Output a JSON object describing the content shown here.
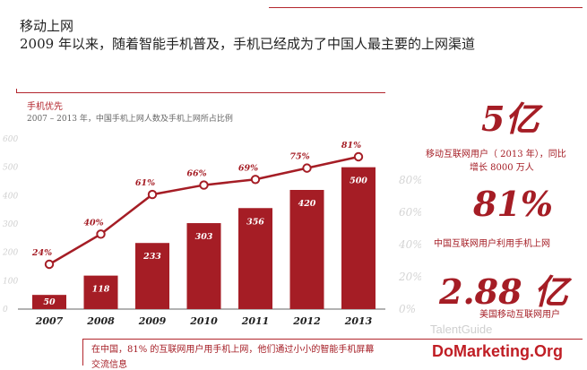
{
  "header": {
    "title": "移动上网",
    "subtitle": "2009 年以来，随着智能手机普及，手机已经成为了中国人最主要的上网渠道"
  },
  "chart_data": {
    "type": "bar",
    "title": "手机优先",
    "subtitle": "2007 – 2013 年，中国手机上网人数及手机上网所占比例",
    "categories": [
      "2007",
      "2008",
      "2009",
      "2010",
      "2011",
      "2012",
      "2013"
    ],
    "series": [
      {
        "kind": "bar",
        "values": [
          50,
          118,
          233,
          303,
          356,
          420,
          500
        ],
        "labels": [
          "50",
          "118",
          "233",
          "303",
          "356",
          "420",
          "500"
        ],
        "color": "#a51d25"
      },
      {
        "kind": "line",
        "values": [
          24,
          40,
          61,
          66,
          69,
          75,
          81
        ],
        "labels": [
          "24%",
          "40%",
          "61%",
          "66%",
          "69%",
          "75%",
          "81%"
        ],
        "color": "#a51d25"
      }
    ],
    "ylim_left": [
      0,
      600
    ],
    "yticks_left": [
      "600",
      "500",
      "400",
      "300",
      "200",
      "100",
      "0"
    ],
    "yticks_right": [
      "80%",
      "60%",
      "40%",
      "20%",
      "0%"
    ],
    "grid": false
  },
  "highlights": [
    {
      "value": "5亿",
      "note_line1": "移动互联网用户（ 2013 年），同比",
      "note_line2": "增长 8000 万人"
    },
    {
      "value": "81%",
      "note_line1": "中国互联网用户利用手机上网"
    },
    {
      "value": "2.88 亿",
      "note_line1": "美国移动互联网用户"
    }
  ],
  "footer": {
    "line1": "在中国，81% 的互联网用户用手机上网，他们通过小小的智能手机屏幕",
    "line2": "交流信息"
  },
  "watermark": {
    "text": "DoMarketing.Org",
    "faint_text": "TalentGuide"
  },
  "colors": {
    "accent": "#a51d25",
    "line": "#b3262d"
  }
}
